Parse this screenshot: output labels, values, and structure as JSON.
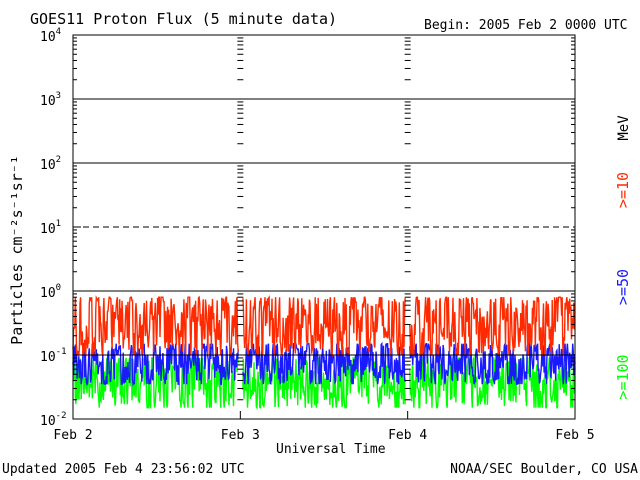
{
  "chart_data": {
    "type": "line",
    "title": "GOES11 Proton Flux (5 minute data)",
    "begin_label": "Begin: 2005 Feb 2 0000 UTC",
    "xlabel": "Universal Time",
    "ylabel": "Particles cm⁻²s⁻¹sr⁻¹",
    "ylim": [
      0.01,
      10000
    ],
    "yscale": "log",
    "y_tick_labels": [
      {
        "base": "10",
        "exp": "-2",
        "value": 0.01
      },
      {
        "base": "10",
        "exp": "-1",
        "value": 0.1
      },
      {
        "base": "10",
        "exp": "0",
        "value": 1
      },
      {
        "base": "10",
        "exp": "1",
        "value": 10
      },
      {
        "base": "10",
        "exp": "2",
        "value": 100
      },
      {
        "base": "10",
        "exp": "3",
        "value": 1000
      },
      {
        "base": "10",
        "exp": "4",
        "value": 10000
      }
    ],
    "x_tick_labels": [
      "Feb 2",
      "Feb 3",
      "Feb 4",
      "Feb 5"
    ],
    "x_range_days": [
      0,
      3
    ],
    "threshold_lines": [
      {
        "value": 10,
        "style": "dashed"
      },
      {
        "value": 1,
        "style": "solid"
      },
      {
        "value": 100,
        "style": "solid"
      },
      {
        "value": 1000,
        "style": "solid"
      },
      {
        "value": 0.1,
        "style": "solid"
      }
    ],
    "series": [
      {
        "name": ">=10",
        "color": "#ff2a00",
        "typical_min": 0.1,
        "typical_max": 0.8
      },
      {
        "name": ">=50",
        "color": "#1a1aff",
        "typical_min": 0.035,
        "typical_max": 0.15
      },
      {
        "name": ">=100",
        "color": "#00ff00",
        "typical_min": 0.015,
        "typical_max": 0.09
      }
    ],
    "legend_unit": "MeV",
    "legend_position": "right",
    "data_gaps_days": [
      1.0,
      2.0
    ]
  },
  "footer": {
    "updated": "Updated 2005 Feb  4 23:56:02 UTC",
    "source": "NOAA/SEC Boulder, CO USA"
  }
}
